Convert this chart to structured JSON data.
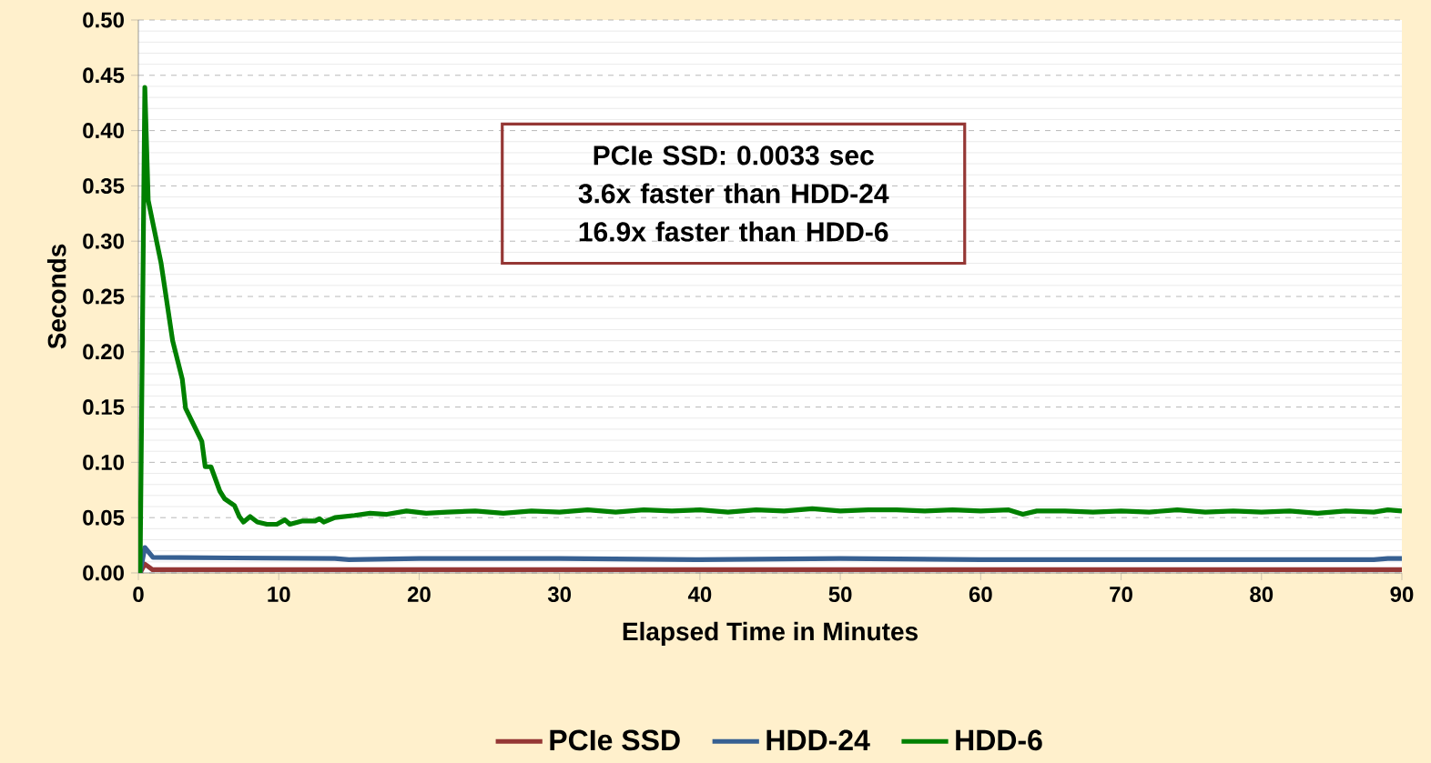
{
  "chart_data": {
    "type": "line",
    "xlabel": "Elapsed Time in Minutes",
    "ylabel": "Seconds",
    "annotations": [
      "PCIe SSD: 0.0033 sec",
      "3.6x faster than HDD-24",
      "16.9x faster than HDD-6"
    ],
    "xlim": [
      0,
      90
    ],
    "xticks": [
      0,
      10,
      20,
      30,
      40,
      50,
      60,
      70,
      80,
      90
    ],
    "ylim": [
      0,
      0.5
    ],
    "yticks": [
      {
        "value": 0,
        "label": "0.00"
      },
      {
        "value": 0.05,
        "label": "0.05"
      },
      {
        "value": 0.1,
        "label": "0.10"
      },
      {
        "value": 0.15,
        "label": "0.15"
      },
      {
        "value": 0.2,
        "label": "0.20"
      },
      {
        "value": 0.25,
        "label": "0.25"
      },
      {
        "value": 0.3,
        "label": "0.30"
      },
      {
        "value": 0.35,
        "label": "0.35"
      },
      {
        "value": 0.4,
        "label": "0.40"
      },
      {
        "value": 0.45,
        "label": "0.45"
      },
      {
        "value": 0.5,
        "label": "0.50"
      }
    ],
    "grid": "y",
    "legend": "bottom",
    "marker": "none",
    "line_style": "solid",
    "series": [
      {
        "name": "PCIe SSD",
        "color": "#953735",
        "x": [
          0.12,
          0.46,
          1.0,
          90
        ],
        "values": [
          0,
          0.008,
          0.003,
          0.003
        ]
      },
      {
        "name": "HDD-24",
        "color": "#376092",
        "x": [
          0.12,
          0.46,
          1.04,
          14,
          15,
          20,
          30,
          40,
          50,
          60,
          70,
          80,
          88,
          89,
          90
        ],
        "values": [
          0,
          0.023,
          0.014,
          0.013,
          0.012,
          0.013,
          0.013,
          0.012,
          0.013,
          0.012,
          0.012,
          0.012,
          0.012,
          0.013,
          0.013
        ]
      },
      {
        "name": "HDD-6",
        "color": "#008000",
        "x": [
          0.12,
          0.46,
          0.7,
          1.62,
          2.44,
          3.13,
          3.36,
          4.52,
          4.76,
          5.17,
          5.8,
          6.15,
          6.84,
          7.19,
          7.49,
          7.96,
          8.47,
          9.16,
          9.86,
          10.44,
          10.79,
          11.7,
          12.6,
          12.9,
          13.2,
          14.0,
          15.4,
          16.5,
          17.7,
          19.1,
          20.5,
          22,
          24,
          26,
          28,
          30,
          32,
          34,
          36,
          38,
          40,
          42,
          44,
          46,
          48,
          50,
          52,
          54,
          56,
          58,
          60,
          62,
          63,
          64,
          66,
          68,
          70,
          72,
          74,
          76,
          78,
          80,
          82,
          84,
          86,
          88,
          89,
          90
        ],
        "values": [
          0,
          0.439,
          0.337,
          0.28,
          0.21,
          0.175,
          0.149,
          0.119,
          0.096,
          0.096,
          0.074,
          0.067,
          0.061,
          0.051,
          0.046,
          0.051,
          0.046,
          0.044,
          0.044,
          0.048,
          0.044,
          0.047,
          0.047,
          0.049,
          0.046,
          0.05,
          0.052,
          0.054,
          0.053,
          0.056,
          0.054,
          0.055,
          0.056,
          0.054,
          0.056,
          0.055,
          0.057,
          0.055,
          0.057,
          0.056,
          0.057,
          0.055,
          0.057,
          0.056,
          0.058,
          0.056,
          0.057,
          0.057,
          0.056,
          0.057,
          0.056,
          0.057,
          0.053,
          0.056,
          0.056,
          0.055,
          0.056,
          0.055,
          0.057,
          0.055,
          0.056,
          0.055,
          0.056,
          0.054,
          0.056,
          0.055,
          0.057,
          0.056
        ]
      }
    ]
  }
}
